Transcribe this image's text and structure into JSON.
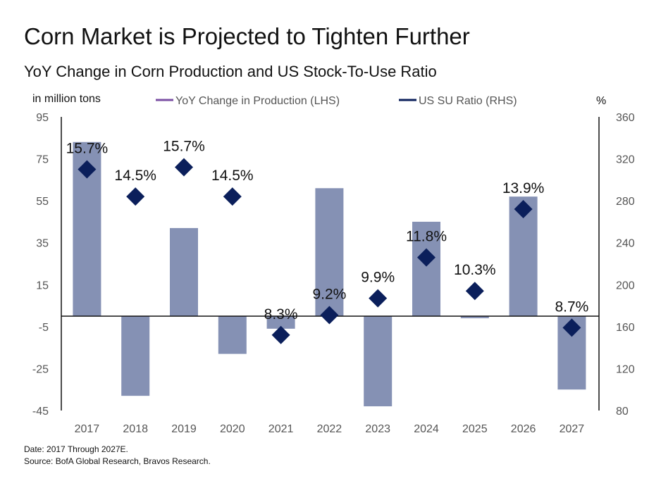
{
  "header": {
    "title": "Corn Market is Projected to Tighten Further",
    "subtitle": "YoY Change in Corn Production and US Stock-To-Use Ratio"
  },
  "footer": {
    "date_note": "Date: 2017 Through 2027E.",
    "source_note": "Source: BofA Global Research, Bravos Research."
  },
  "colors": {
    "bar": "#8591b4",
    "marker": "#0b1f5b",
    "legend_line_lhs": "#7b4fa3",
    "axis": "#111111",
    "text": "#111111",
    "tick_text": "#555555"
  },
  "chart_data": {
    "type": "bar",
    "categories": [
      "2017",
      "2018",
      "2019",
      "2020",
      "2021",
      "2022",
      "2023",
      "2024",
      "2025",
      "2026",
      "2027"
    ],
    "left_axis_label": "in million tons",
    "right_axis_label": "%",
    "y_left": {
      "min": -45,
      "max": 95,
      "ticks": [
        95,
        75,
        55,
        35,
        15,
        -5,
        -25,
        -45
      ]
    },
    "y_right": {
      "min": 80,
      "max": 360,
      "ticks": [
        360,
        320,
        280,
        240,
        200,
        160,
        120,
        80
      ]
    },
    "series": [
      {
        "name": "YoY Change in Production (LHS)",
        "kind": "bar",
        "axis": "left",
        "values": [
          83,
          -38,
          42,
          -18,
          -6,
          61,
          -43,
          45,
          -1,
          57,
          -35
        ]
      },
      {
        "name": "US SU Ratio (RHS)",
        "kind": "marker",
        "axis": "right",
        "values": [
          310,
          284,
          312,
          284,
          152,
          171,
          187,
          226,
          194,
          272,
          159
        ],
        "labels": [
          "15.7%",
          "14.5%",
          "15.7%",
          "14.5%",
          "8.3%",
          "9.2%",
          "9.9%",
          "11.8%",
          "10.3%",
          "13.9%",
          "8.7%"
        ]
      }
    ],
    "grid": false,
    "legend_position": "top"
  }
}
